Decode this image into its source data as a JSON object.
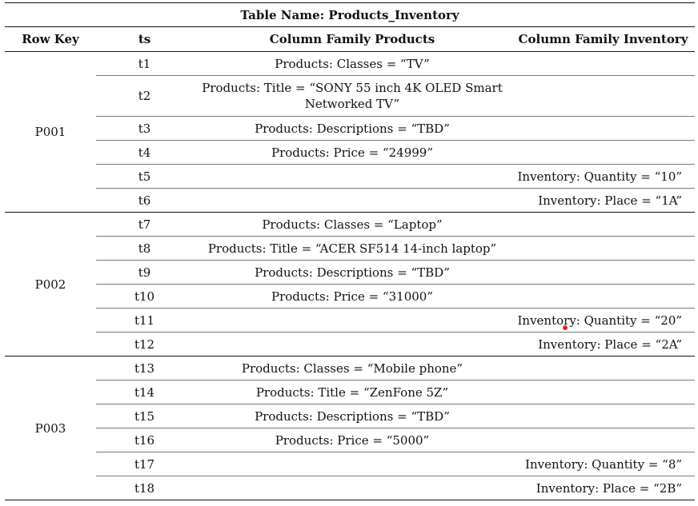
{
  "table": {
    "title": "Table Name: Products_Inventory",
    "headers": [
      "Row Key",
      "ts",
      "Column Family Products",
      "Column Family Inventory"
    ],
    "groups": [
      {
        "key": "P001",
        "rows": [
          {
            "ts": "t1",
            "products": "Products: Classes = “TV”",
            "inventory": ""
          },
          {
            "ts": "t2",
            "products": "Products: Title = “SONY 55 inch 4K OLED Smart Networked TV”",
            "inventory": ""
          },
          {
            "ts": "t3",
            "products": "Products: Descriptions = “TBD”",
            "inventory": ""
          },
          {
            "ts": "t4",
            "products": "Products: Price = “24999”",
            "inventory": ""
          },
          {
            "ts": "t5",
            "products": "",
            "inventory": "Inventory: Quantity = “10”"
          },
          {
            "ts": "t6",
            "products": "",
            "inventory": "Inventory: Place = “1A”"
          }
        ]
      },
      {
        "key": "P002",
        "rows": [
          {
            "ts": "t7",
            "products": "Products: Classes = “Laptop”",
            "inventory": ""
          },
          {
            "ts": "t8",
            "products": "Products: Title = “ACER SF514 14-inch laptop”",
            "inventory": ""
          },
          {
            "ts": "t9",
            "products": "Products: Descriptions = “TBD”",
            "inventory": ""
          },
          {
            "ts": "t10",
            "products": "Products: Price = “31000”",
            "inventory": ""
          },
          {
            "ts": "t11",
            "products": "",
            "inventory": "Inventory: Quantity = “20”"
          },
          {
            "ts": "t12",
            "products": "",
            "inventory": "Inventory: Place = “2A”"
          }
        ]
      },
      {
        "key": "P003",
        "rows": [
          {
            "ts": "t13",
            "products": "Products: Classes = “Mobile phone”",
            "inventory": ""
          },
          {
            "ts": "t14",
            "products": "Products: Title = “ZenFone 5Z”",
            "inventory": ""
          },
          {
            "ts": "t15",
            "products": "Products: Descriptions = “TBD”",
            "inventory": ""
          },
          {
            "ts": "t16",
            "products": "Products: Price = “5000”",
            "inventory": ""
          },
          {
            "ts": "t17",
            "products": "",
            "inventory": "Inventory: Quantity = “8”"
          },
          {
            "ts": "t18",
            "products": "",
            "inventory": "Inventory: Place = “2B”"
          }
        ]
      }
    ]
  },
  "colors": {
    "cursor": "#e0241a",
    "rule": "#111111"
  }
}
